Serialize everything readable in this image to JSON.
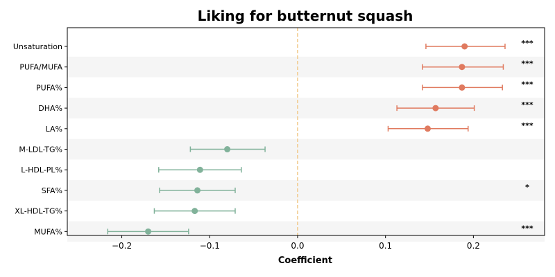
{
  "chart_data": {
    "type": "forest",
    "title": "Liking for butternut squash",
    "xlabel": "Coefficient",
    "xlim": [
      -0.262,
      0.281
    ],
    "xticks": [
      -0.2,
      -0.1,
      0.0,
      0.1,
      0.2
    ],
    "xtick_labels": [
      "−0.2",
      "−0.1",
      "0.0",
      "0.1",
      "0.2"
    ],
    "reference_line": 0.0,
    "colors": {
      "positive": "#e07a5f",
      "negative": "#81b29a",
      "reference": "#f2cc8f",
      "band": "#f5f5f5"
    },
    "rows": [
      {
        "label": "Unsaturation",
        "estimate": 0.19,
        "lower": 0.146,
        "upper": 0.236,
        "significance": "***"
      },
      {
        "label": "PUFA/MUFA",
        "estimate": 0.187,
        "lower": 0.142,
        "upper": 0.234,
        "significance": "***"
      },
      {
        "label": "PUFA%",
        "estimate": 0.187,
        "lower": 0.142,
        "upper": 0.233,
        "significance": "***"
      },
      {
        "label": "DHA%",
        "estimate": 0.157,
        "lower": 0.113,
        "upper": 0.201,
        "significance": "***"
      },
      {
        "label": "LA%",
        "estimate": 0.148,
        "lower": 0.103,
        "upper": 0.194,
        "significance": "***"
      },
      {
        "label": "M-LDL-TG%",
        "estimate": -0.08,
        "lower": -0.122,
        "upper": -0.037,
        "significance": ""
      },
      {
        "label": "L-HDL-PL%",
        "estimate": -0.111,
        "lower": -0.158,
        "upper": -0.064,
        "significance": ""
      },
      {
        "label": "SFA%",
        "estimate": -0.114,
        "lower": -0.157,
        "upper": -0.071,
        "significance": "*"
      },
      {
        "label": "XL-HDL-TG%",
        "estimate": -0.117,
        "lower": -0.163,
        "upper": -0.071,
        "significance": ""
      },
      {
        "label": "MUFA%",
        "estimate": -0.17,
        "lower": -0.216,
        "upper": -0.124,
        "significance": "***"
      }
    ]
  }
}
